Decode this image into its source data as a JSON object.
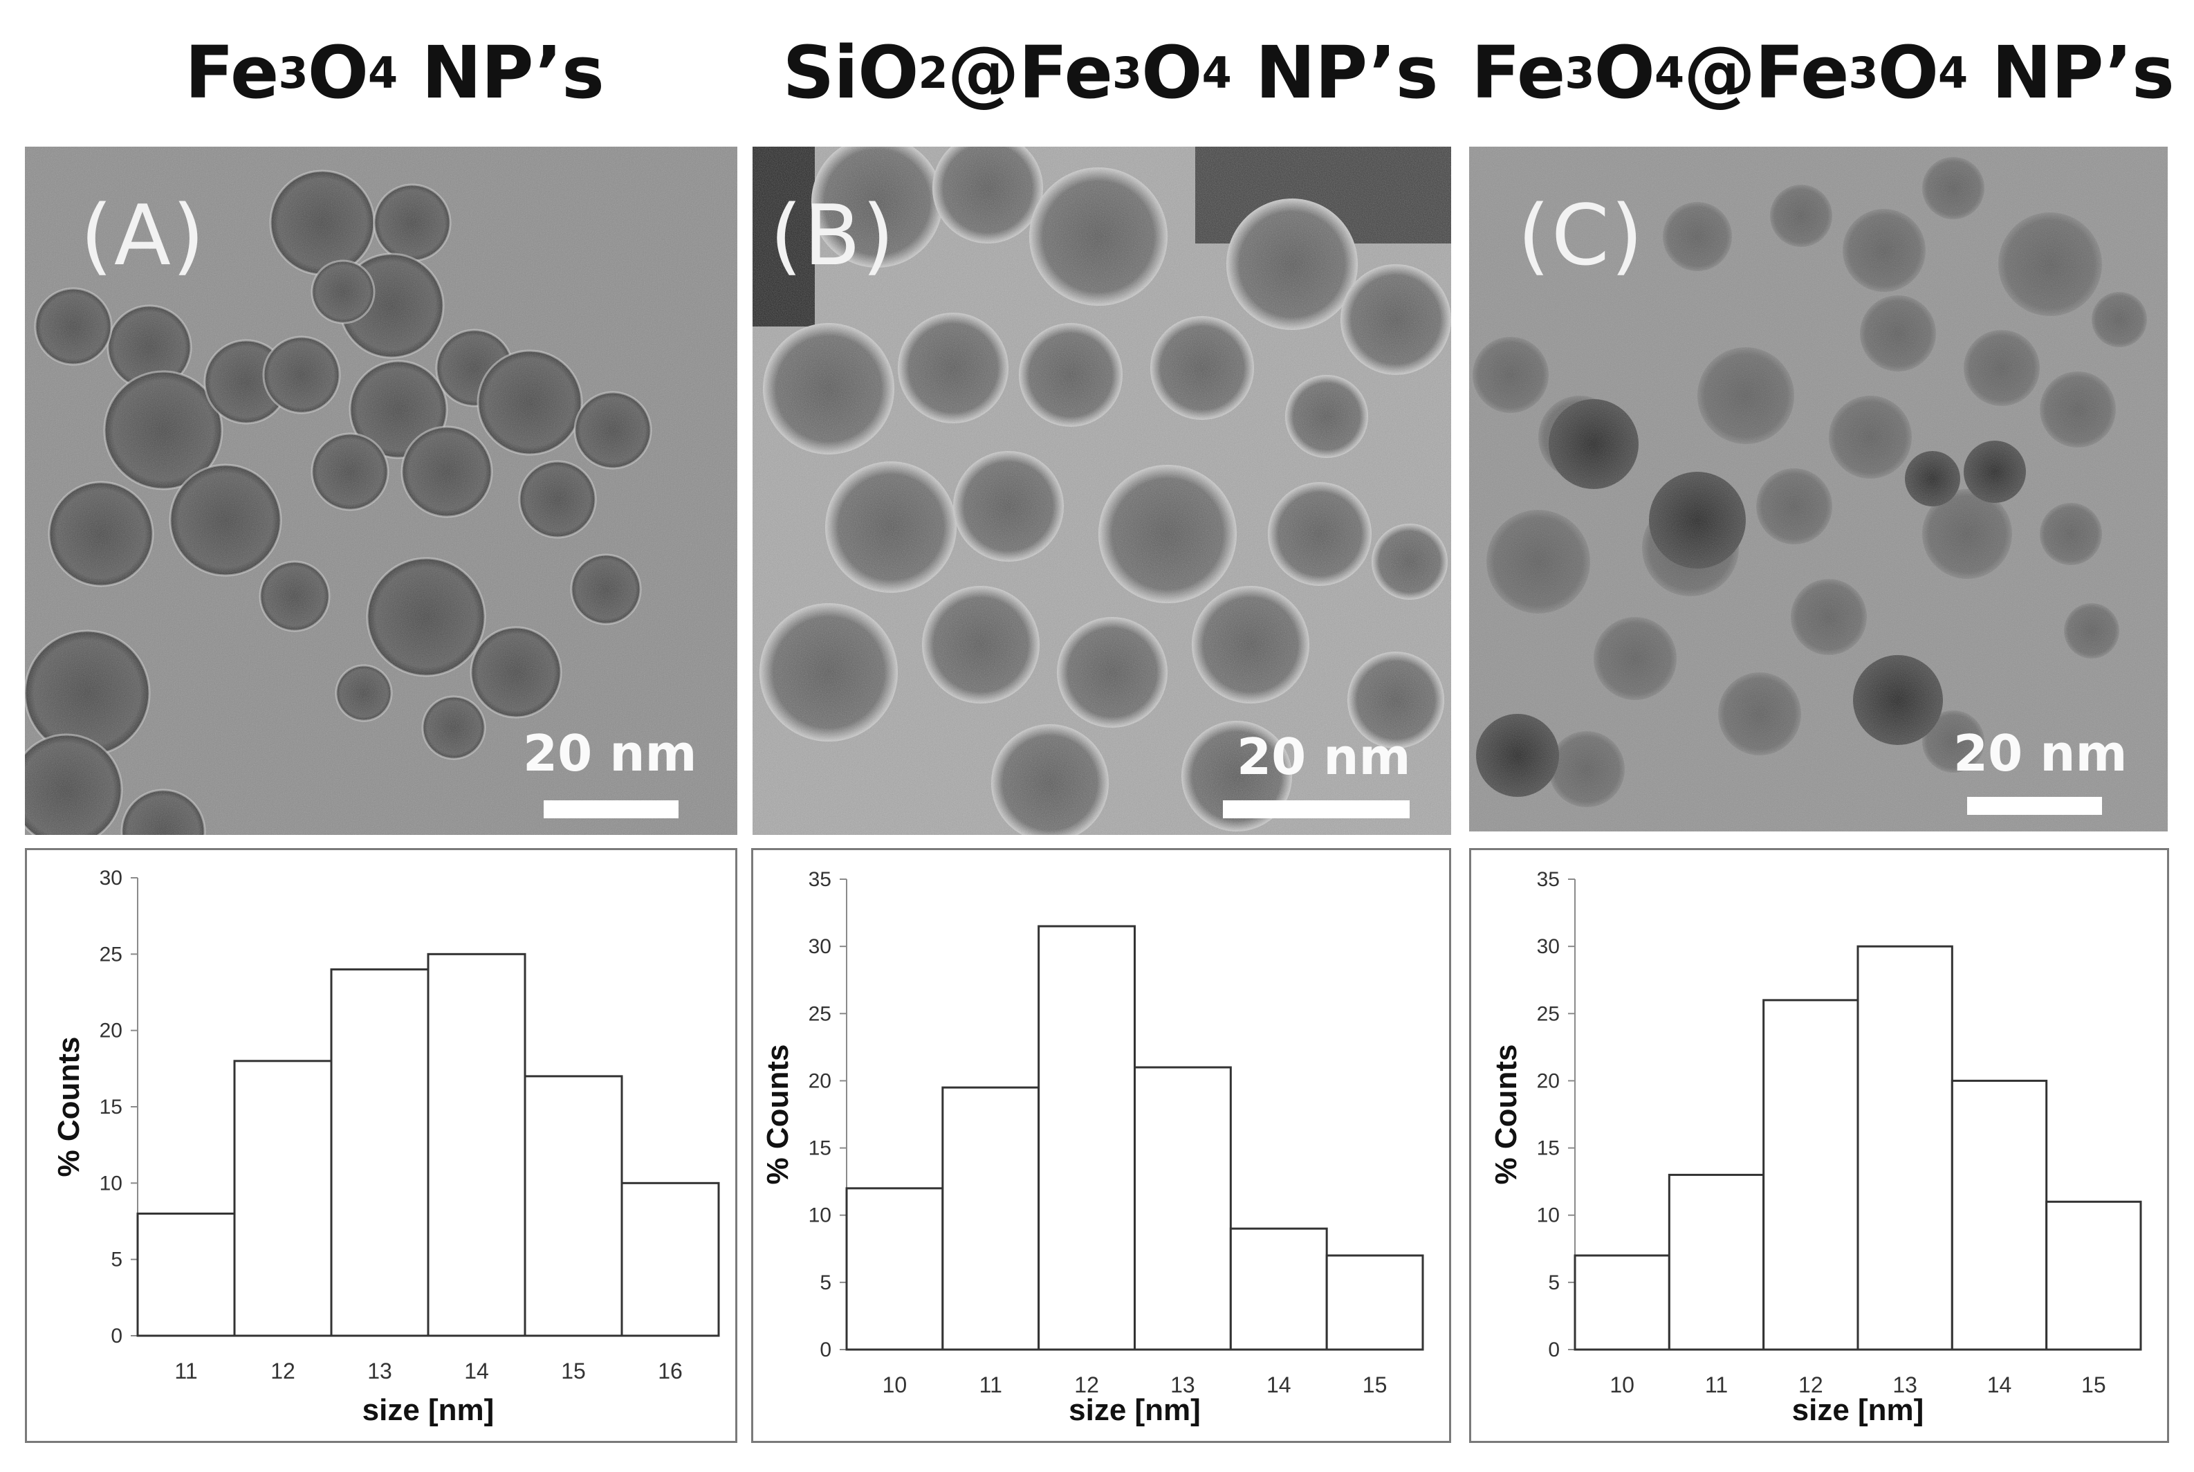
{
  "panels": [
    {
      "title_parts": [
        "Fe",
        "3",
        "O",
        "4",
        " NP’s"
      ],
      "letter": "(A)",
      "scale": "20 nm"
    },
    {
      "title_parts": [
        "SiO",
        "2",
        "@Fe",
        "3",
        "O",
        "4",
        " NP’s"
      ],
      "letter": "(B)",
      "scale": "20 nm"
    },
    {
      "title_parts": [
        "Fe",
        "3",
        "O",
        "4",
        "@Fe",
        "3",
        "O",
        "4",
        " NP’s"
      ],
      "letter": "(C)",
      "scale": "20 nm"
    }
  ],
  "chart_data": [
    {
      "type": "bar",
      "categories": [
        "11",
        "12",
        "13",
        "14",
        "15",
        "16"
      ],
      "values": [
        8,
        18,
        24,
        25,
        17,
        10
      ],
      "xlabel": "size [nm]",
      "ylabel": "% Counts",
      "ylim": [
        0,
        30
      ],
      "yticks": [
        "0",
        "5",
        "10",
        "15",
        "20",
        "25",
        "30"
      ],
      "grid": false
    },
    {
      "type": "bar",
      "categories": [
        "10",
        "11",
        "12",
        "13",
        "14",
        "15"
      ],
      "values": [
        12,
        19.5,
        31.5,
        21,
        9,
        7
      ],
      "xlabel": "size [nm]",
      "ylabel": "% Counts",
      "ylim": [
        0,
        35
      ],
      "yticks": [
        "0",
        "5",
        "10",
        "15",
        "20",
        "25",
        "30",
        "35"
      ],
      "grid": false
    },
    {
      "type": "bar",
      "categories": [
        "10",
        "11",
        "12",
        "13",
        "14",
        "15"
      ],
      "values": [
        7,
        13,
        26,
        30,
        20,
        11
      ],
      "xlabel": "size [nm]",
      "ylabel": "% Counts",
      "ylim": [
        0,
        35
      ],
      "yticks": [
        "0",
        "5",
        "10",
        "15",
        "20",
        "25",
        "30",
        "35"
      ],
      "grid": false
    }
  ]
}
